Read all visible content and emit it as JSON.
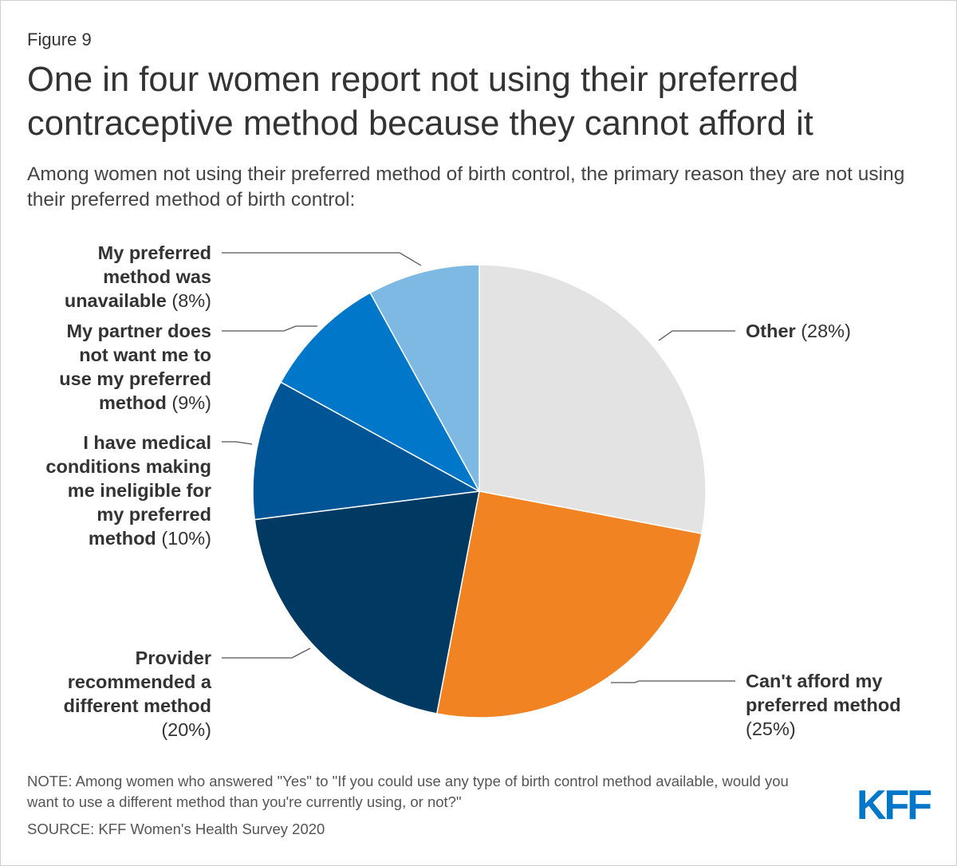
{
  "figure_label": "Figure 9",
  "title": "One in four women report not using their preferred contraceptive method because they cannot afford it",
  "subtitle": "Among women not using their preferred method of birth control, the primary reason they are not using their preferred method of birth control:",
  "chart_data": {
    "type": "pie",
    "start": "12 o'clock",
    "direction": "clockwise",
    "slices": [
      {
        "label": "Other",
        "value": 28,
        "value_label": "(28%)",
        "color": "#e3e3e3"
      },
      {
        "label": "Can't afford my preferred method",
        "value": 25,
        "value_label": "(25%)",
        "color": "#f28322"
      },
      {
        "label": "Provider recommended a different method",
        "value": 20,
        "value_label": "(20%)",
        "color": "#003a63"
      },
      {
        "label": "I have medical conditions making me ineligible for my preferred method",
        "value": 10,
        "value_label": "(10%)",
        "color": "#005596"
      },
      {
        "label": "My partner does not want me to use my preferred method",
        "value": 9,
        "value_label": "(9%)",
        "color": "#0077c8"
      },
      {
        "label": "My preferred method was unavailable",
        "value": 8,
        "value_label": "(8%)",
        "color": "#7db9e2"
      }
    ]
  },
  "labels": {
    "other": {
      "name": "Other",
      "pct": "(28%)"
    },
    "afford": {
      "line1": "Can't afford my",
      "line2": "preferred method",
      "pct": "(25%)"
    },
    "provider": {
      "line1": "Provider",
      "line2": "recommended a",
      "line3": "different method",
      "pct": "(20%)"
    },
    "medical": {
      "line1": "I have medical",
      "line2": "conditions making",
      "line3": "me ineligible for",
      "line4": "my preferred",
      "line5": "method",
      "pct": "(10%)"
    },
    "partner": {
      "line1": "My partner does",
      "line2": "not want me to",
      "line3": "use my preferred",
      "line4": "method",
      "pct": "(9%)"
    },
    "unavailable": {
      "line1": "My preferred",
      "line2": "method was",
      "line3": "unavailable",
      "pct": "(8%)"
    }
  },
  "note": "NOTE: Among women who answered \"Yes\" to \"If you could use any type of birth control method available, would you want to use a different method than you're currently using, or not?\"",
  "source": "SOURCE: KFF Women's Health Survey 2020",
  "logo_text": "KFF",
  "colors": {
    "logo": "#0077c8",
    "leader_line": "#555555",
    "slice_border": "#ffffff"
  }
}
